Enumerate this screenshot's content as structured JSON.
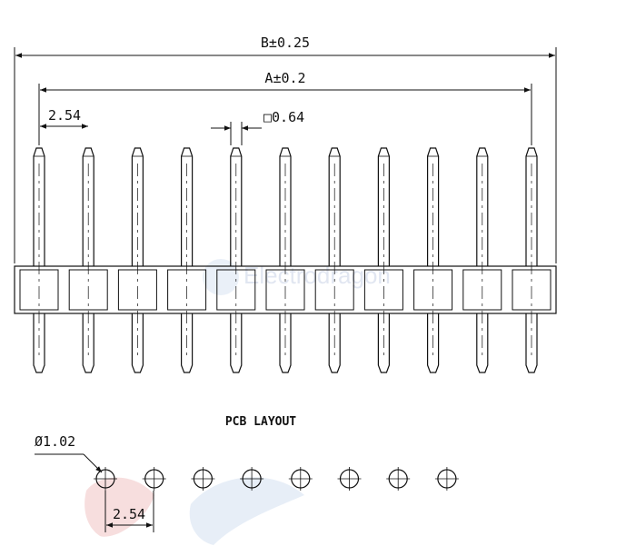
{
  "labels": {
    "overall_length": "B±0.25",
    "pin_span": "A±0.2",
    "pin_pitch": "2.54",
    "pin_square": "□0.64",
    "pcb_title": "PCB LAYOUT",
    "hole_diameter": "Ø1.02",
    "hole_pitch": "2.54"
  },
  "header": {
    "pin_count": 11
  },
  "pcb_layout": {
    "hole_count": 8
  },
  "watermark": {
    "text": "Electrodragon"
  },
  "colors": {
    "line": "#111111",
    "watermark": "#c9d3e6",
    "logo_red": "#e8a0a0",
    "logo_blue": "#b9cfe8"
  }
}
